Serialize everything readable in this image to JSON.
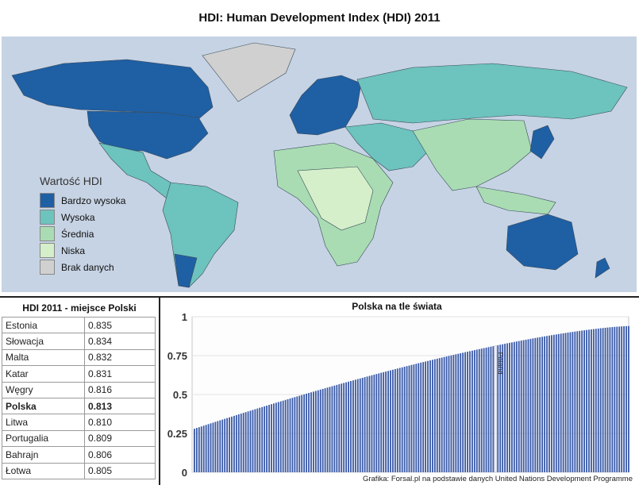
{
  "title": "HDI: Human Development Index (HDI) 2011",
  "map": {
    "legend_title": "Wartość HDI",
    "legend": [
      {
        "label": "Bardzo wysoka",
        "color": "#1f5fa3"
      },
      {
        "label": "Wysoka",
        "color": "#6dc3bd"
      },
      {
        "label": "Średnia",
        "color": "#a9dcb3"
      },
      {
        "label": "Niska",
        "color": "#d4efc9"
      },
      {
        "label": "Brak danych",
        "color": "#d0d0d0"
      }
    ],
    "ocean_color": "#c6d3e4"
  },
  "table": {
    "title": "HDI 2011 - miejsce Polski",
    "rows": [
      {
        "country": "Estonia",
        "value": "0.835"
      },
      {
        "country": "Słowacja",
        "value": "0.834"
      },
      {
        "country": "Malta",
        "value": "0.832"
      },
      {
        "country": "Katar",
        "value": "0.831"
      },
      {
        "country": "Węgry",
        "value": "0.816"
      },
      {
        "country": "Polska",
        "value": "0.813",
        "highlight": true
      },
      {
        "country": "Litwa",
        "value": "0.810"
      },
      {
        "country": "Portugalia",
        "value": "0.809"
      },
      {
        "country": "Bahrajn",
        "value": "0.806"
      },
      {
        "country": "Łotwa",
        "value": "0.805"
      }
    ]
  },
  "chart_data": {
    "type": "bar",
    "title": "Polska na tle świata",
    "ylim": [
      0,
      1
    ],
    "yticks": [
      "0",
      "0.25",
      "0.5",
      "0.75",
      "1"
    ],
    "bar_color": "#3a5aa8",
    "annotation": "Poland",
    "highlight_value": 0.813,
    "n_countries": 187,
    "min_value": 0.28,
    "max_value": 0.94,
    "source": "Grafika: Forsal.pl na podstawie danych United Nations Development Programme"
  }
}
